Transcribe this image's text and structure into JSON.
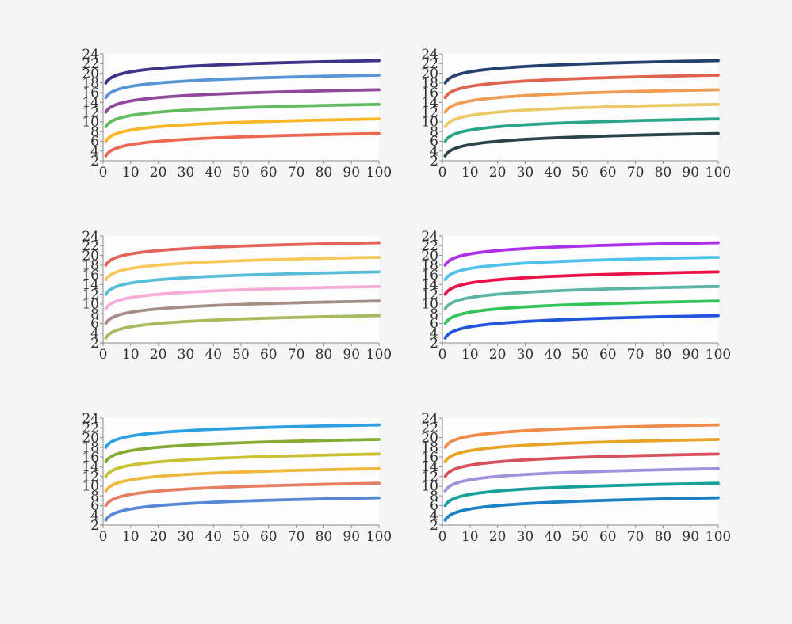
{
  "page": {
    "background": "#f5f5f6",
    "plot_background": "#fdfdfd",
    "axis_color": "#8c8c8c",
    "tick_label_color": "#2f2f2f"
  },
  "chart_data": {
    "type": "line",
    "layout": "grid of 6 small-multiple line charts: 2 columns x 3 rows, no titles, no legends, left and bottom spines only",
    "formula": "y = base + ln(x), plotted for x from 1 to 100",
    "xlim": [
      0,
      100
    ],
    "ylim": [
      2,
      24
    ],
    "x_ticks": [
      0,
      10,
      20,
      30,
      40,
      50,
      60,
      70,
      80,
      90,
      100
    ],
    "y_ticks": [
      2,
      4,
      6,
      8,
      10,
      12,
      14,
      16,
      18,
      20,
      22,
      24
    ],
    "x_samples": [
      1,
      2,
      5,
      10,
      20,
      50,
      100
    ],
    "charts": [
      {
        "position": "top-left",
        "series": [
          {
            "name": "indigo",
            "color": "#3d3389",
            "base": 18,
            "values": [
              18.0,
              18.69,
              19.61,
              20.3,
              21.0,
              21.91,
              22.61
            ]
          },
          {
            "name": "cornflower-blue",
            "color": "#5895d6",
            "base": 15,
            "values": [
              15.0,
              15.69,
              16.61,
              17.3,
              18.0,
              18.91,
              19.61
            ]
          },
          {
            "name": "plum-purple",
            "color": "#90489a",
            "base": 12,
            "values": [
              12.0,
              12.69,
              13.61,
              14.3,
              15.0,
              15.91,
              16.61
            ]
          },
          {
            "name": "medium-green",
            "color": "#63bc62",
            "base": 9,
            "values": [
              9.0,
              9.69,
              10.61,
              11.3,
              12.0,
              12.91,
              13.61
            ]
          },
          {
            "name": "amber",
            "color": "#fab627",
            "base": 6,
            "values": [
              6.0,
              6.69,
              7.61,
              8.3,
              9.0,
              9.91,
              10.61
            ]
          },
          {
            "name": "tomato",
            "color": "#ec674f",
            "base": 3,
            "values": [
              3.0,
              3.69,
              4.61,
              5.3,
              6.0,
              6.91,
              7.61
            ]
          }
        ]
      },
      {
        "position": "top-right",
        "series": [
          {
            "name": "dark-navy",
            "color": "#24406f",
            "base": 18,
            "values": [
              18.0,
              18.69,
              19.61,
              20.3,
              21.0,
              21.91,
              22.61
            ]
          },
          {
            "name": "terracotta",
            "color": "#e06350",
            "base": 15,
            "values": [
              15.0,
              15.69,
              16.61,
              17.3,
              18.0,
              18.91,
              19.61
            ]
          },
          {
            "name": "orange",
            "color": "#ef9c52",
            "base": 12,
            "values": [
              12.0,
              12.69,
              13.61,
              14.3,
              15.0,
              15.91,
              16.61
            ]
          },
          {
            "name": "gold",
            "color": "#ecc968",
            "base": 9,
            "values": [
              9.0,
              9.69,
              10.61,
              11.3,
              12.0,
              12.91,
              13.61
            ]
          },
          {
            "name": "teal-green",
            "color": "#2aa589",
            "base": 6,
            "values": [
              6.0,
              6.69,
              7.61,
              8.3,
              9.0,
              9.91,
              10.61
            ]
          },
          {
            "name": "dark-slate",
            "color": "#2b444b",
            "base": 3,
            "values": [
              3.0,
              3.69,
              4.61,
              5.3,
              6.0,
              6.91,
              7.61
            ]
          }
        ]
      },
      {
        "position": "middle-left",
        "series": [
          {
            "name": "salmon-red",
            "color": "#e4635a",
            "base": 18,
            "values": [
              18.0,
              18.69,
              19.61,
              20.3,
              21.0,
              21.91,
              22.61
            ]
          },
          {
            "name": "golden-yellow",
            "color": "#f7c95c",
            "base": 15,
            "values": [
              15.0,
              15.69,
              16.61,
              17.3,
              18.0,
              18.91,
              19.61
            ]
          },
          {
            "name": "sky-cyan",
            "color": "#58bdd8",
            "base": 12,
            "values": [
              12.0,
              12.69,
              13.61,
              14.3,
              15.0,
              15.91,
              16.61
            ]
          },
          {
            "name": "pink",
            "color": "#f6abd9",
            "base": 9,
            "values": [
              9.0,
              9.69,
              10.61,
              11.3,
              12.0,
              12.91,
              13.61
            ]
          },
          {
            "name": "taupe",
            "color": "#a48e85",
            "base": 6,
            "values": [
              6.0,
              6.69,
              7.61,
              8.3,
              9.0,
              9.91,
              10.61
            ]
          },
          {
            "name": "olive-green",
            "color": "#a6bb5e",
            "base": 3,
            "values": [
              3.0,
              3.69,
              4.61,
              5.3,
              6.0,
              6.91,
              7.61
            ]
          }
        ]
      },
      {
        "position": "middle-right",
        "series": [
          {
            "name": "violet",
            "color": "#ad30e6",
            "base": 18,
            "values": [
              18.0,
              18.69,
              19.61,
              20.3,
              21.0,
              21.91,
              22.61
            ]
          },
          {
            "name": "sky-blue",
            "color": "#4fc2ec",
            "base": 15,
            "values": [
              15.0,
              15.69,
              16.61,
              17.3,
              18.0,
              18.91,
              19.61
            ]
          },
          {
            "name": "crimson",
            "color": "#ea1348",
            "base": 12,
            "values": [
              12.0,
              12.69,
              13.61,
              14.3,
              15.0,
              15.91,
              16.61
            ]
          },
          {
            "name": "sea-green",
            "color": "#5cb4a4",
            "base": 9,
            "values": [
              9.0,
              9.69,
              10.61,
              11.3,
              12.0,
              12.91,
              13.61
            ]
          },
          {
            "name": "emerald-green",
            "color": "#32c458",
            "base": 6,
            "values": [
              6.0,
              6.69,
              7.61,
              8.3,
              9.0,
              9.91,
              10.61
            ]
          },
          {
            "name": "royal-blue",
            "color": "#2153dc",
            "base": 3,
            "values": [
              3.0,
              3.69,
              4.61,
              5.3,
              6.0,
              6.91,
              7.61
            ]
          }
        ]
      },
      {
        "position": "bottom-left",
        "series": [
          {
            "name": "azure",
            "color": "#2da0e2",
            "base": 18,
            "values": [
              18.0,
              18.69,
              19.61,
              20.3,
              21.0,
              21.91,
              22.61
            ]
          },
          {
            "name": "olive",
            "color": "#84ab33",
            "base": 15,
            "values": [
              15.0,
              15.69,
              16.61,
              17.3,
              18.0,
              18.91,
              19.61
            ]
          },
          {
            "name": "yellow-green",
            "color": "#c9c132",
            "base": 12,
            "values": [
              12.0,
              12.69,
              13.61,
              14.3,
              15.0,
              15.91,
              16.61
            ]
          },
          {
            "name": "amber-orange",
            "color": "#eeb83c",
            "base": 9,
            "values": [
              9.0,
              9.69,
              10.61,
              11.3,
              12.0,
              12.91,
              13.61
            ]
          },
          {
            "name": "salmon",
            "color": "#e67e62",
            "base": 6,
            "values": [
              6.0,
              6.69,
              7.61,
              8.3,
              9.0,
              9.91,
              10.61
            ]
          },
          {
            "name": "cornflower",
            "color": "#5887d6",
            "base": 3,
            "values": [
              3.0,
              3.69,
              4.61,
              5.3,
              6.0,
              6.91,
              7.61
            ]
          }
        ]
      },
      {
        "position": "bottom-right",
        "series": [
          {
            "name": "orange",
            "color": "#ef8a48",
            "base": 18,
            "values": [
              18.0,
              18.69,
              19.61,
              20.3,
              21.0,
              21.91,
              22.61
            ]
          },
          {
            "name": "golden-amber",
            "color": "#e7a426",
            "base": 15,
            "values": [
              15.0,
              15.69,
              16.61,
              17.3,
              18.0,
              18.91,
              19.61
            ]
          },
          {
            "name": "rose-red",
            "color": "#d8505c",
            "base": 12,
            "values": [
              12.0,
              12.69,
              13.61,
              14.3,
              15.0,
              15.91,
              16.61
            ]
          },
          {
            "name": "lavender",
            "color": "#a191dc",
            "base": 9,
            "values": [
              9.0,
              9.69,
              10.61,
              11.3,
              12.0,
              12.91,
              13.61
            ]
          },
          {
            "name": "teal",
            "color": "#16a098",
            "base": 6,
            "values": [
              6.0,
              6.69,
              7.61,
              8.3,
              9.0,
              9.91,
              10.61
            ]
          },
          {
            "name": "ocean-blue",
            "color": "#1b80c4",
            "base": 3,
            "values": [
              3.0,
              3.69,
              4.61,
              5.3,
              6.0,
              6.91,
              7.61
            ]
          }
        ]
      }
    ]
  }
}
